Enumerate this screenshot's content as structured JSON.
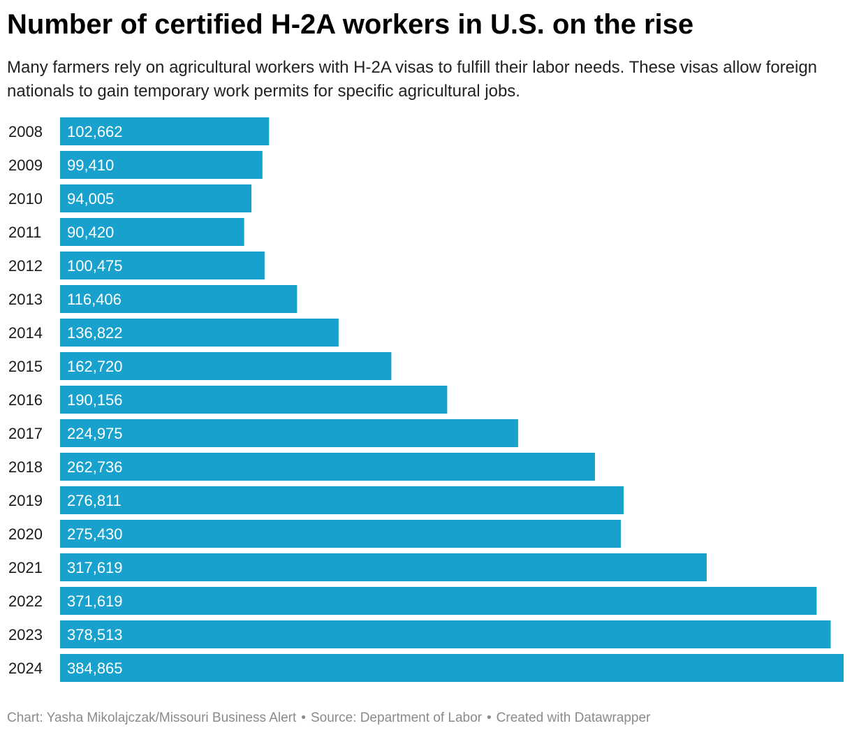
{
  "header": {
    "title": "Number of certified H-2A workers in U.S. on the rise",
    "subtitle": "Many farmers rely on agricultural workers with H-2A visas to fulfill their labor needs. These visas allow foreign nationals to gain temporary work permits for specific agricultural jobs."
  },
  "chart_data": {
    "type": "bar",
    "orientation": "horizontal",
    "categories": [
      "2008",
      "2009",
      "2010",
      "2011",
      "2012",
      "2013",
      "2014",
      "2015",
      "2016",
      "2017",
      "2018",
      "2019",
      "2020",
      "2021",
      "2022",
      "2023",
      "2024"
    ],
    "values": [
      102662,
      99410,
      94005,
      90420,
      100475,
      116406,
      136822,
      162720,
      190156,
      224975,
      262736,
      276811,
      275430,
      317619,
      371619,
      378513,
      384865
    ],
    "value_labels": [
      "102,662",
      "99,410",
      "94,005",
      "90,420",
      "100,475",
      "116,406",
      "136,822",
      "162,720",
      "190,156",
      "224,975",
      "262,736",
      "276,811",
      "275,430",
      "317,619",
      "371,619",
      "378,513",
      "384,865"
    ],
    "xlim": [
      0,
      384865
    ],
    "bar_color": "#18a1cd",
    "label_color": "#ffffff",
    "grid": false,
    "legend": false
  },
  "footer": {
    "chart_credit": "Chart: Yasha Mikolajczak/Missouri Business Alert",
    "source": "Source: Department of Labor",
    "created_with": "Created with Datawrapper",
    "separator": "•"
  }
}
